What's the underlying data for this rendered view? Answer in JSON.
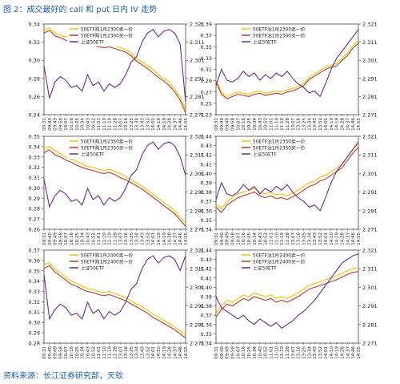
{
  "figure": {
    "title": "图 2：成交最好的 call 和 put 日内 IV 走势",
    "source": "资料来源：长江证券研究部，天软"
  },
  "colors": {
    "series1": "#f2c200",
    "series2": "#c0392b",
    "series3": "#6a2c91",
    "axis": "#444444",
    "text": "#222222"
  },
  "chart_data": [
    {
      "type": "line",
      "x": [
        "09:31",
        "09:40",
        "09:49",
        "09:58",
        "10:07",
        "10:16",
        "10:25",
        "10:34",
        "10:43",
        "10:52",
        "11:01",
        "11:10",
        "11:19",
        "11:28",
        "13:07",
        "13:16",
        "13:25",
        "13:34",
        "13:43",
        "13:52",
        "14:01",
        "14:10",
        "14:19",
        "14:28",
        "14:37",
        "14:46",
        "14:55"
      ],
      "ylim": [
        0.24,
        0.34
      ],
      "yticks": [
        "0.24",
        "0.26",
        "0.28",
        "0.30",
        "0.32",
        "0.34"
      ],
      "y2lim": [
        2.271,
        2.321
      ],
      "y2ticks": [
        "2.271",
        "2.281",
        "2.291",
        "2.301",
        "2.311",
        "2.321"
      ],
      "legend": [
        "50ETF购1月2300卖一价",
        "50ETF购1月2300买一价",
        "上证50ETF"
      ],
      "series": [
        {
          "name": "50ETF购1月2300卖一价",
          "axis": "left",
          "values": [
            0.333,
            0.336,
            0.33,
            0.328,
            0.326,
            0.324,
            0.322,
            0.321,
            0.32,
            0.319,
            0.318,
            0.317,
            0.318,
            0.316,
            0.314,
            0.312,
            0.308,
            0.302,
            0.298,
            0.294,
            0.29,
            0.284,
            0.28,
            0.276,
            0.268,
            0.26,
            0.245
          ]
        },
        {
          "name": "50ETF购1月2300买一价",
          "axis": "left",
          "values": [
            0.33,
            0.333,
            0.327,
            0.325,
            0.322,
            0.32,
            0.319,
            0.318,
            0.317,
            0.316,
            0.315,
            0.314,
            0.315,
            0.313,
            0.311,
            0.309,
            0.305,
            0.299,
            0.295,
            0.291,
            0.286,
            0.281,
            0.277,
            0.272,
            0.265,
            0.256,
            0.242
          ]
        },
        {
          "name": "上证50ETF",
          "axis": "right",
          "values": [
            2.298,
            2.28,
            2.289,
            2.292,
            2.29,
            2.286,
            2.287,
            2.284,
            2.293,
            2.287,
            2.289,
            2.284,
            2.288,
            2.286,
            2.288,
            2.293,
            2.3,
            2.303,
            2.311,
            2.316,
            2.318,
            2.314,
            2.317,
            2.318,
            2.316,
            2.31,
            2.278
          ]
        }
      ]
    },
    {
      "type": "line",
      "x": [
        "09:31",
        "09:40",
        "09:49",
        "09:58",
        "10:07",
        "10:16",
        "10:25",
        "10:34",
        "10:43",
        "10:52",
        "11:01",
        "11:10",
        "11:19",
        "11:28",
        "13:07",
        "13:16",
        "13:25",
        "13:34",
        "13:43",
        "13:52",
        "14:01",
        "14:10",
        "14:19",
        "14:28",
        "14:37",
        "14:46",
        "14:55"
      ],
      "ylim": [
        0.23,
        0.39
      ],
      "yticks": [
        "0.23",
        "0.25",
        "0.27",
        "0.29",
        "0.31",
        "0.33",
        "0.35",
        "0.37",
        "0.39"
      ],
      "y2lim": [
        2.271,
        2.321
      ],
      "y2ticks": [
        "2.271",
        "2.281",
        "2.291",
        "2.301",
        "2.311",
        "2.321"
      ],
      "legend": [
        "50ETF沽1月2300卖一价",
        "50ETF沽1月2300买一价",
        "上证50ETF"
      ],
      "series": [
        {
          "name": "50ETF沽1月2300卖一价",
          "axis": "left",
          "values": [
            0.292,
            0.27,
            0.262,
            0.266,
            0.27,
            0.268,
            0.266,
            0.27,
            0.272,
            0.268,
            0.27,
            0.272,
            0.27,
            0.274,
            0.276,
            0.28,
            0.285,
            0.296,
            0.302,
            0.308,
            0.314,
            0.318,
            0.32,
            0.33,
            0.338,
            0.352,
            0.36
          ]
        },
        {
          "name": "50ETF沽1月2300买一价",
          "axis": "left",
          "values": [
            0.288,
            0.266,
            0.258,
            0.262,
            0.266,
            0.264,
            0.262,
            0.266,
            0.268,
            0.264,
            0.266,
            0.268,
            0.266,
            0.27,
            0.272,
            0.276,
            0.281,
            0.292,
            0.298,
            0.304,
            0.31,
            0.314,
            0.316,
            0.326,
            0.334,
            0.348,
            0.356
          ]
        },
        {
          "name": "上证50ETF",
          "axis": "right",
          "values": [
            2.287,
            2.296,
            2.29,
            2.289,
            2.291,
            2.295,
            2.292,
            2.294,
            2.29,
            2.293,
            2.291,
            2.294,
            2.292,
            2.295,
            2.291,
            2.288,
            2.286,
            2.283,
            2.284,
            2.281,
            2.288,
            2.296,
            2.302,
            2.306,
            2.31,
            2.314,
            2.318
          ]
        }
      ]
    },
    {
      "type": "line",
      "x": [
        "09:31",
        "09:40",
        "09:49",
        "09:58",
        "10:07",
        "10:16",
        "10:25",
        "10:34",
        "10:43",
        "10:52",
        "11:01",
        "11:10",
        "11:19",
        "11:28",
        "13:07",
        "13:16",
        "13:25",
        "13:34",
        "13:43",
        "13:52",
        "14:01",
        "14:10",
        "14:19",
        "14:28",
        "14:37",
        "14:46",
        "14:55"
      ],
      "ylim": [
        0.26,
        0.35
      ],
      "yticks": [
        "0.26",
        "0.27",
        "0.28",
        "0.29",
        "0.30",
        "0.31",
        "0.32",
        "0.33",
        "0.34",
        "0.35"
      ],
      "y2lim": [
        2.271,
        2.321
      ],
      "y2ticks": [
        "2.271",
        "2.281",
        "2.291",
        "2.301",
        "2.311",
        "2.321"
      ],
      "legend": [
        "50ETF购1月2350卖一价",
        "50ETF购1月2350买一价",
        "上证50ETF"
      ],
      "series": [
        {
          "name": "50ETF购1月2350卖一价",
          "axis": "left",
          "values": [
            0.338,
            0.34,
            0.336,
            0.333,
            0.33,
            0.328,
            0.326,
            0.323,
            0.321,
            0.32,
            0.318,
            0.317,
            0.318,
            0.316,
            0.314,
            0.311,
            0.308,
            0.305,
            0.302,
            0.298,
            0.294,
            0.29,
            0.286,
            0.282,
            0.278,
            0.272,
            0.266
          ]
        },
        {
          "name": "50ETF购1月2350买一价",
          "axis": "left",
          "values": [
            0.334,
            0.337,
            0.332,
            0.33,
            0.327,
            0.325,
            0.322,
            0.32,
            0.318,
            0.317,
            0.315,
            0.314,
            0.315,
            0.313,
            0.31,
            0.308,
            0.305,
            0.302,
            0.299,
            0.295,
            0.291,
            0.287,
            0.283,
            0.279,
            0.275,
            0.269,
            0.263
          ]
        },
        {
          "name": "上证50ETF",
          "axis": "right",
          "values": [
            2.298,
            2.283,
            2.289,
            2.292,
            2.29,
            2.286,
            2.287,
            2.284,
            2.293,
            2.287,
            2.289,
            2.284,
            2.288,
            2.286,
            2.288,
            2.293,
            2.3,
            2.303,
            2.311,
            2.316,
            2.318,
            2.314,
            2.317,
            2.318,
            2.316,
            2.31,
            2.3
          ]
        }
      ]
    },
    {
      "type": "line",
      "x": [
        "09:31",
        "09:40",
        "09:49",
        "09:58",
        "10:07",
        "10:16",
        "10:25",
        "10:34",
        "10:43",
        "10:52",
        "11:01",
        "11:10",
        "11:19",
        "11:28",
        "13:07",
        "13:16",
        "13:25",
        "13:34",
        "13:43",
        "13:52",
        "14:01",
        "14:10",
        "14:19",
        "14:28",
        "14:37",
        "14:46",
        "14:55"
      ],
      "ylim": [
        0.34,
        0.44
      ],
      "yticks": [
        "0.34",
        "0.35",
        "0.36",
        "0.37",
        "0.38",
        "0.39",
        "0.40",
        "0.41",
        "0.42",
        "0.43",
        "0.44"
      ],
      "y2lim": [
        2.271,
        2.321
      ],
      "y2ticks": [
        "2.271",
        "2.281",
        "2.291",
        "2.301",
        "2.311",
        "2.321"
      ],
      "legend": [
        "50ETF沽1月2350卖一价",
        "50ETF沽1月2350买一价",
        "上证50ETF"
      ],
      "series": [
        {
          "name": "50ETF沽1月2350卖一价",
          "axis": "left",
          "values": [
            0.368,
            0.362,
            0.37,
            0.374,
            0.378,
            0.38,
            0.382,
            0.384,
            0.38,
            0.378,
            0.38,
            0.377,
            0.378,
            0.376,
            0.379,
            0.382,
            0.386,
            0.39,
            0.392,
            0.396,
            0.398,
            0.402,
            0.406,
            0.41,
            0.418,
            0.426,
            0.432
          ]
        },
        {
          "name": "50ETF沽1月2350买一价",
          "axis": "left",
          "values": [
            0.364,
            0.358,
            0.366,
            0.37,
            0.374,
            0.376,
            0.378,
            0.38,
            0.376,
            0.374,
            0.376,
            0.373,
            0.374,
            0.372,
            0.375,
            0.378,
            0.382,
            0.386,
            0.388,
            0.392,
            0.394,
            0.398,
            0.402,
            0.406,
            0.414,
            0.422,
            0.428
          ]
        },
        {
          "name": "上证50ETF",
          "axis": "right",
          "values": [
            2.287,
            2.296,
            2.29,
            2.289,
            2.291,
            2.295,
            2.292,
            2.294,
            2.29,
            2.293,
            2.291,
            2.294,
            2.292,
            2.295,
            2.291,
            2.288,
            2.286,
            2.283,
            2.284,
            2.281,
            2.288,
            2.296,
            2.302,
            2.306,
            2.31,
            2.314,
            2.318
          ]
        }
      ]
    },
    {
      "type": "line",
      "x": [
        "09:31",
        "09:40",
        "09:49",
        "09:58",
        "10:07",
        "10:16",
        "10:25",
        "10:34",
        "10:43",
        "10:52",
        "11:01",
        "11:10",
        "11:19",
        "11:28",
        "13:07",
        "13:16",
        "13:25",
        "13:34",
        "13:43",
        "13:52",
        "14:01",
        "14:10",
        "14:19",
        "14:28",
        "14:37",
        "14:46",
        "14:55"
      ],
      "ylim": [
        0.28,
        0.37
      ],
      "yticks": [
        "0.28",
        "0.29",
        "0.30",
        "0.31",
        "0.32",
        "0.33",
        "0.34",
        "0.35",
        "0.36",
        "0.37"
      ],
      "y2lim": [
        2.271,
        2.321
      ],
      "y2ticks": [
        "2.271",
        "2.281",
        "2.291",
        "2.301",
        "2.311",
        "2.321"
      ],
      "legend": [
        "50ETF购1月2400卖一价",
        "50ETF购1月2400买一价",
        "上证50ETF"
      ],
      "series": [
        {
          "name": "50ETF购1月2400卖一价",
          "axis": "left",
          "values": [
            0.356,
            0.358,
            0.352,
            0.348,
            0.344,
            0.34,
            0.338,
            0.335,
            0.333,
            0.332,
            0.33,
            0.329,
            0.33,
            0.328,
            0.326,
            0.324,
            0.321,
            0.318,
            0.315,
            0.312,
            0.308,
            0.305,
            0.302,
            0.299,
            0.296,
            0.292,
            0.288
          ]
        },
        {
          "name": "50ETF购1月2400买一价",
          "axis": "left",
          "values": [
            0.352,
            0.355,
            0.349,
            0.345,
            0.341,
            0.337,
            0.335,
            0.332,
            0.33,
            0.329,
            0.327,
            0.326,
            0.327,
            0.325,
            0.323,
            0.321,
            0.318,
            0.315,
            0.312,
            0.309,
            0.305,
            0.302,
            0.299,
            0.296,
            0.293,
            0.289,
            0.285
          ]
        },
        {
          "name": "上证50ETF",
          "axis": "right",
          "values": [
            2.308,
            2.284,
            2.289,
            2.292,
            2.29,
            2.286,
            2.287,
            2.284,
            2.293,
            2.287,
            2.289,
            2.284,
            2.288,
            2.286,
            2.288,
            2.293,
            2.3,
            2.303,
            2.311,
            2.316,
            2.318,
            2.314,
            2.317,
            2.318,
            2.316,
            2.31,
            2.318
          ]
        }
      ]
    },
    {
      "type": "line",
      "x": [
        "09:31",
        "09:40",
        "09:49",
        "09:58",
        "10:07",
        "10:16",
        "10:25",
        "10:34",
        "10:43",
        "10:52",
        "11:01",
        "11:10",
        "11:19",
        "11:28",
        "13:07",
        "13:16",
        "13:25",
        "13:34",
        "13:43",
        "13:52",
        "14:01",
        "14:10",
        "14:19",
        "14:28",
        "14:37",
        "14:46",
        "14:55"
      ],
      "ylim": [
        0.34,
        0.44
      ],
      "yticks": [
        "0.34",
        "0.35",
        "0.36",
        "0.37",
        "0.38",
        "0.39",
        "0.40",
        "0.41",
        "0.42",
        "0.43",
        "0.44"
      ],
      "y2lim": [
        2.271,
        2.321
      ],
      "y2ticks": [
        "2.271",
        "2.281",
        "2.291",
        "2.301",
        "2.311",
        "2.321"
      ],
      "legend": [
        "50ETF沽1月2400卖一价",
        "50ETF沽1月2400买一价",
        "上证50ETF"
      ],
      "series": [
        {
          "name": "50ETF沽1月2400卖一价",
          "axis": "left",
          "values": [
            0.372,
            0.38,
            0.386,
            0.384,
            0.388,
            0.392,
            0.39,
            0.394,
            0.392,
            0.39,
            0.392,
            0.388,
            0.39,
            0.388,
            0.391,
            0.394,
            0.398,
            0.402,
            0.404,
            0.406,
            0.408,
            0.41,
            0.412,
            0.415,
            0.418,
            0.42,
            0.421
          ]
        },
        {
          "name": "50ETF沽1月2400买一价",
          "axis": "left",
          "values": [
            0.368,
            0.376,
            0.382,
            0.38,
            0.384,
            0.388,
            0.386,
            0.39,
            0.388,
            0.386,
            0.388,
            0.384,
            0.386,
            0.384,
            0.387,
            0.39,
            0.394,
            0.398,
            0.4,
            0.402,
            0.404,
            0.406,
            0.408,
            0.411,
            0.414,
            0.416,
            0.417
          ]
        },
        {
          "name": "上证50ETF",
          "axis": "right",
          "values": [
            2.296,
            2.29,
            2.288,
            2.286,
            2.284,
            2.286,
            2.283,
            2.281,
            2.284,
            2.282,
            2.28,
            2.282,
            2.279,
            2.281,
            2.283,
            2.286,
            2.288,
            2.291,
            2.294,
            2.298,
            2.302,
            2.306,
            2.31,
            2.314,
            2.316,
            2.318,
            2.319
          ]
        }
      ]
    }
  ]
}
